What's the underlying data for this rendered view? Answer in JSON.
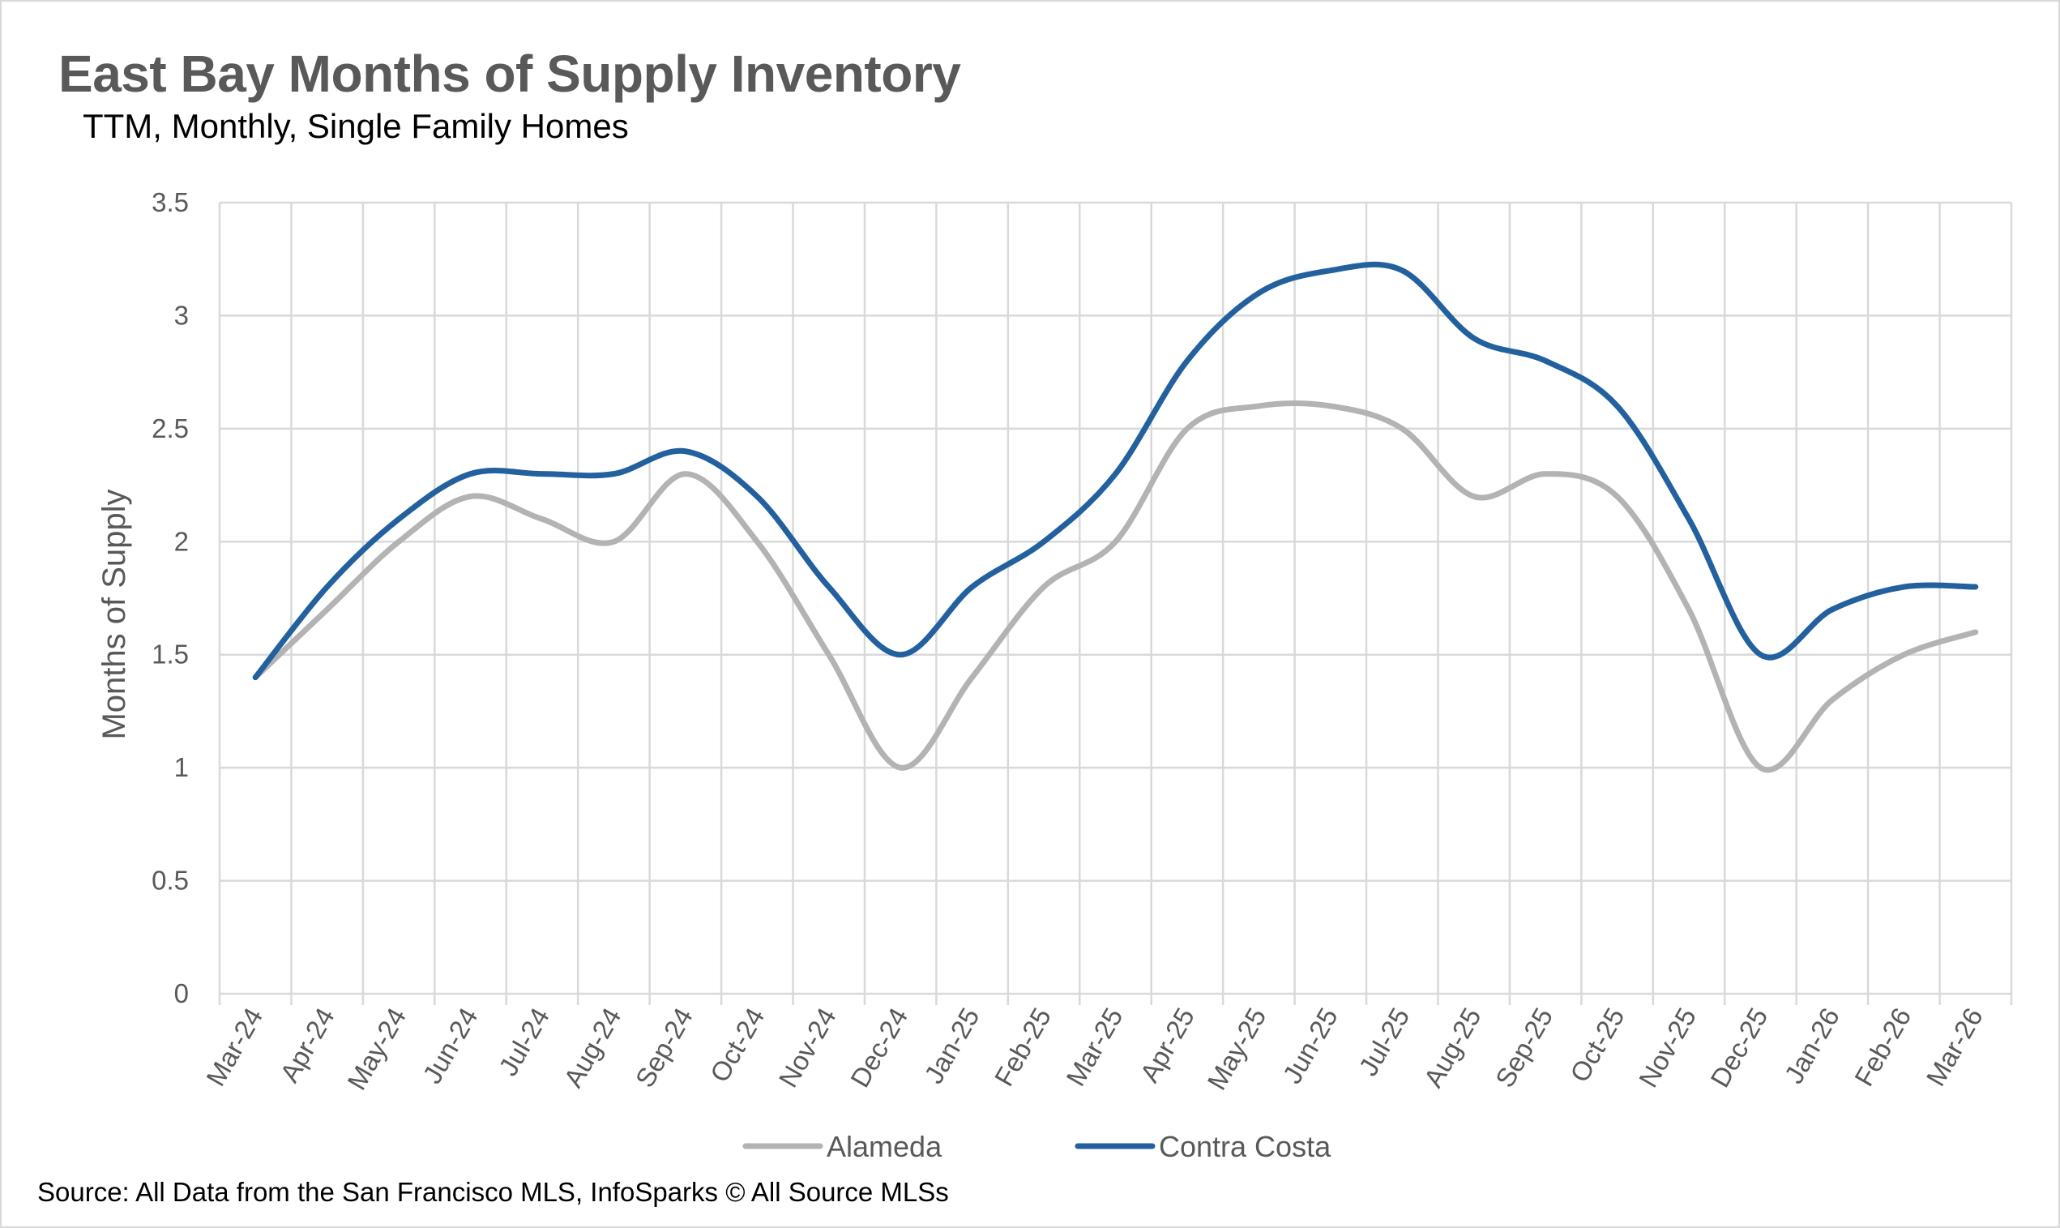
{
  "chart_data": {
    "type": "line",
    "title": "East Bay Months of Supply Inventory",
    "subtitle": "TTM, Monthly, Single Family Homes",
    "xlabel": "",
    "ylabel": "Months of Supply",
    "ylim": [
      0,
      3.5
    ],
    "yticks": [
      "0",
      "0.5",
      "1",
      "1.5",
      "2",
      "2.5",
      "3",
      "3.5"
    ],
    "grid": true,
    "legend": "bottom",
    "categories": [
      "Mar-24",
      "Apr-24",
      "May-24",
      "Jun-24",
      "Jul-24",
      "Aug-24",
      "Sep-24",
      "Oct-24",
      "Nov-24",
      "Dec-24",
      "Jan-25",
      "Feb-25",
      "Mar-25",
      "Apr-25",
      "May-25",
      "Jun-25",
      "Jul-25",
      "Aug-25",
      "Sep-25",
      "Oct-25",
      "Nov-25",
      "Dec-25",
      "Jan-26",
      "Feb-26",
      "Mar-26"
    ],
    "series": [
      {
        "name": "Alameda",
        "color": "#b3b3b3",
        "values": [
          1.4,
          1.7,
          2.0,
          2.2,
          2.1,
          2.0,
          2.3,
          2.0,
          1.5,
          1.0,
          1.4,
          1.8,
          2.0,
          2.5,
          2.6,
          2.6,
          2.5,
          2.2,
          2.3,
          2.2,
          1.7,
          1.0,
          1.3,
          1.5,
          1.6
        ]
      },
      {
        "name": "Contra Costa",
        "color": "#23619e",
        "values": [
          1.4,
          1.8,
          2.1,
          2.3,
          2.3,
          2.3,
          2.4,
          2.2,
          1.8,
          1.5,
          1.8,
          2.0,
          2.3,
          2.8,
          3.1,
          3.2,
          3.2,
          2.9,
          2.8,
          2.6,
          2.1,
          1.5,
          1.7,
          1.8,
          1.8
        ]
      }
    ],
    "source": "Source: All Data from the San Francisco MLS, InfoSparks © All Source MLSs"
  }
}
